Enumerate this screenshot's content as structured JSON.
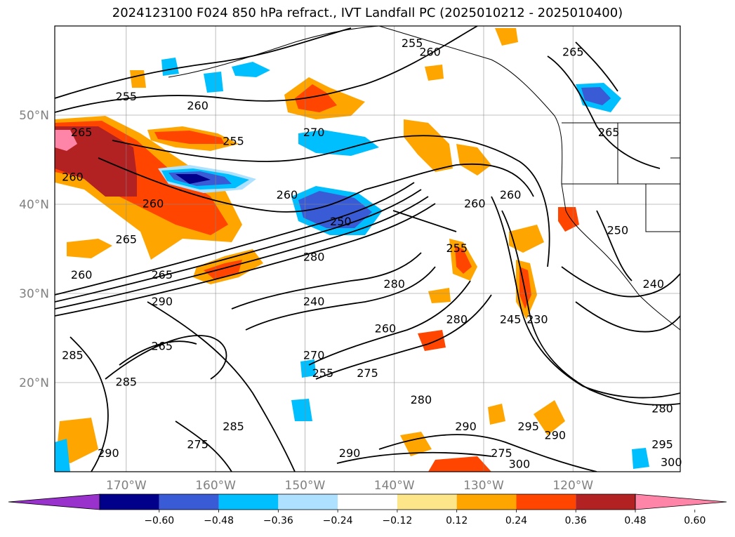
{
  "title": "2024123100 F024 850 hPa refract., IVT Landfall PC (2025010212 - 2025010400)",
  "map": {
    "lon_range": [
      -178,
      -108
    ],
    "lat_range": [
      10,
      60
    ],
    "lat_ticks": [
      {
        "value": 20,
        "label": "20°N"
      },
      {
        "value": 30,
        "label": "30°N"
      },
      {
        "value": 40,
        "label": "40°N"
      },
      {
        "value": 50,
        "label": "50°N"
      }
    ],
    "lon_ticks": [
      {
        "value": -170,
        "label": "170°W"
      },
      {
        "value": -160,
        "label": "160°W"
      },
      {
        "value": -150,
        "label": "150°W"
      },
      {
        "value": -140,
        "label": "140°W"
      },
      {
        "value": -130,
        "label": "130°W"
      },
      {
        "value": -120,
        "label": "120°W"
      }
    ],
    "gridlines": true,
    "contour_labels": [
      {
        "text": "255",
        "lon": -170,
        "lat": 52
      },
      {
        "text": "265",
        "lon": -175,
        "lat": 48
      },
      {
        "text": "260",
        "lon": -162,
        "lat": 51
      },
      {
        "text": "255",
        "lon": -158,
        "lat": 47
      },
      {
        "text": "260",
        "lon": -176,
        "lat": 43
      },
      {
        "text": "260",
        "lon": -167,
        "lat": 40
      },
      {
        "text": "265",
        "lon": -170,
        "lat": 36
      },
      {
        "text": "260",
        "lon": -175,
        "lat": 32
      },
      {
        "text": "265",
        "lon": -166,
        "lat": 32
      },
      {
        "text": "290",
        "lon": -166,
        "lat": 29
      },
      {
        "text": "285",
        "lon": -176,
        "lat": 23
      },
      {
        "text": "285",
        "lon": -170,
        "lat": 20
      },
      {
        "text": "265",
        "lon": -166,
        "lat": 24
      },
      {
        "text": "270",
        "lon": -149,
        "lat": 48
      },
      {
        "text": "260",
        "lon": -152,
        "lat": 41
      },
      {
        "text": "250",
        "lon": -146,
        "lat": 38
      },
      {
        "text": "280",
        "lon": -149,
        "lat": 34
      },
      {
        "text": "240",
        "lon": -149,
        "lat": 29
      },
      {
        "text": "260",
        "lon": -141,
        "lat": 26
      },
      {
        "text": "280",
        "lon": -140,
        "lat": 31
      },
      {
        "text": "280",
        "lon": -133,
        "lat": 27
      },
      {
        "text": "270",
        "lon": -149,
        "lat": 23
      },
      {
        "text": "255",
        "lon": -148,
        "lat": 21
      },
      {
        "text": "275",
        "lon": -143,
        "lat": 21
      },
      {
        "text": "280",
        "lon": -137,
        "lat": 18
      },
      {
        "text": "260",
        "lon": -131,
        "lat": 40
      },
      {
        "text": "260",
        "lon": -127,
        "lat": 41
      },
      {
        "text": "255",
        "lon": -133,
        "lat": 35
      },
      {
        "text": "245",
        "lon": -127,
        "lat": 27
      },
      {
        "text": "230",
        "lon": -124,
        "lat": 27
      },
      {
        "text": "250",
        "lon": -115,
        "lat": 37
      },
      {
        "text": "240",
        "lon": -111,
        "lat": 31
      },
      {
        "text": "265",
        "lon": -116,
        "lat": 48
      },
      {
        "text": "265",
        "lon": -120,
        "lat": 57
      },
      {
        "text": "255",
        "lon": -138,
        "lat": 58
      },
      {
        "text": "260",
        "lon": -136,
        "lat": 57
      },
      {
        "text": "280",
        "lon": -110,
        "lat": 17
      },
      {
        "text": "290",
        "lon": -132,
        "lat": 15
      },
      {
        "text": "295",
        "lon": -125,
        "lat": 15
      },
      {
        "text": "290",
        "lon": -122,
        "lat": 14
      },
      {
        "text": "290",
        "lon": -145,
        "lat": 12
      },
      {
        "text": "275",
        "lon": -128,
        "lat": 12
      },
      {
        "text": "300",
        "lon": -126,
        "lat": 10.8
      },
      {
        "text": "285",
        "lon": -158,
        "lat": 15
      },
      {
        "text": "275",
        "lon": -162,
        "lat": 13
      },
      {
        "text": "290",
        "lon": -172,
        "lat": 12
      },
      {
        "text": "295",
        "lon": -110,
        "lat": 13
      },
      {
        "text": "300",
        "lon": -109,
        "lat": 11
      }
    ]
  },
  "colorbar": {
    "colors": [
      "#9932cc",
      "#00008b",
      "#3a5bd6",
      "#00bfff",
      "#aee1ff",
      "#ffffff",
      "#fde68a",
      "#ffa500",
      "#ff4500",
      "#b22222",
      "#ff85a8"
    ],
    "labels": [
      "−0.60",
      "−0.48",
      "−0.36",
      "−0.24",
      "−0.12",
      "0.12",
      "0.24",
      "0.36",
      "0.48",
      "0.60"
    ]
  }
}
